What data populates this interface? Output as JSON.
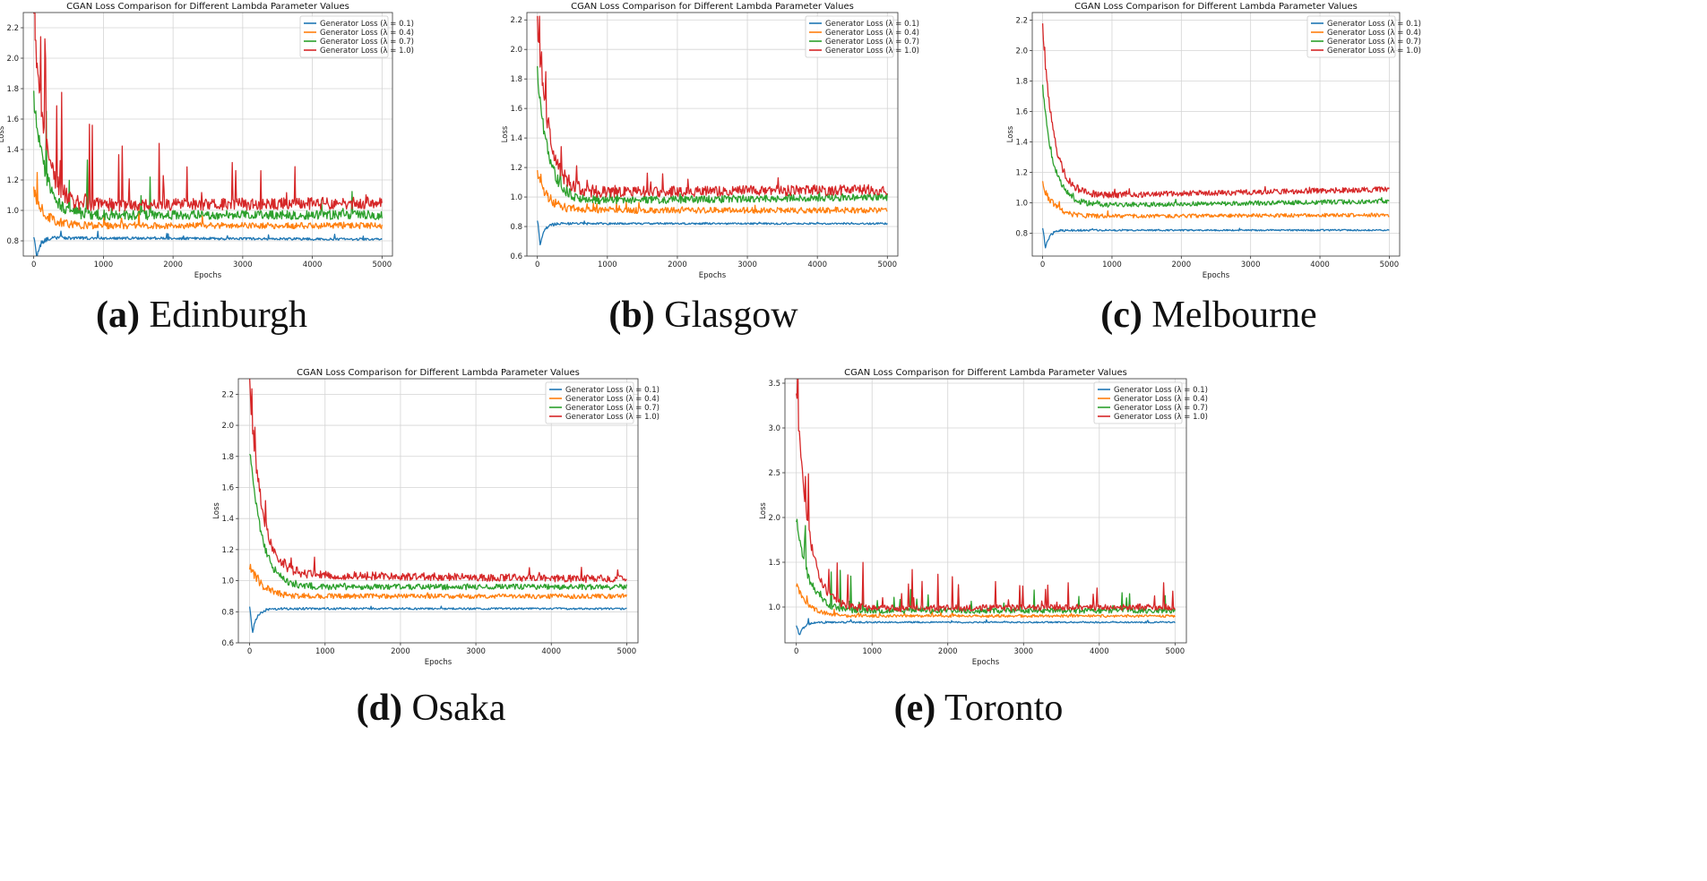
{
  "chart_data": [
    {
      "type": "line",
      "title": "CGAN Loss Comparison for Different Lambda Parameter Values",
      "caption_letter": "(a)",
      "caption_name": "Edinburgh",
      "xlabel": "Epochs",
      "ylabel": "Loss",
      "xlim": [
        -150,
        5150
      ],
      "ylim": [
        0.7,
        2.3
      ],
      "xticks": [
        0,
        1000,
        2000,
        3000,
        4000,
        5000
      ],
      "yticks": [
        0.8,
        1.0,
        1.2,
        1.4,
        1.6,
        1.8,
        2.0,
        2.2
      ],
      "ytick_decimals": 1,
      "grid": true,
      "legend_position": "top-right",
      "series": [
        {
          "name": "Generator Loss (λ = 0.1)",
          "color": "#1f77b4",
          "seed": 11,
          "start": 0.84,
          "dip": 0.69,
          "plateau": 0.82,
          "drift": -0.01,
          "noise": 0.008,
          "spike_prob": 0.02,
          "spike_size": 0.06
        },
        {
          "name": "Generator Loss (λ = 0.4)",
          "color": "#ff7f0e",
          "seed": 23,
          "start": 1.13,
          "dip": 0.0,
          "plateau": 0.9,
          "drift": 0.0,
          "noise": 0.02,
          "spike_prob": 0.015,
          "spike_size": 0.15
        },
        {
          "name": "Generator Loss (λ = 0.7)",
          "color": "#2ca02c",
          "seed": 37,
          "start": 1.75,
          "dip": 0.0,
          "plateau": 0.97,
          "drift": 0.0,
          "noise": 0.03,
          "spike_prob": 0.02,
          "spike_size": 0.35
        },
        {
          "name": "Generator Loss (λ = 1.0)",
          "color": "#d62728",
          "seed": 51,
          "start": 2.25,
          "dip": 0.0,
          "plateau": 1.03,
          "drift": 0.02,
          "noise": 0.04,
          "spike_prob": 0.03,
          "spike_size": 0.55
        }
      ]
    },
    {
      "type": "line",
      "title": "CGAN Loss Comparison for Different Lambda Parameter Values",
      "caption_letter": "(b)",
      "caption_name": "Glasgow",
      "xlabel": "Epochs",
      "ylabel": "Loss",
      "xlim": [
        -150,
        5150
      ],
      "ylim": [
        0.6,
        2.25
      ],
      "xticks": [
        0,
        1000,
        2000,
        3000,
        4000,
        5000
      ],
      "yticks": [
        0.6,
        0.8,
        1.0,
        1.2,
        1.4,
        1.6,
        1.8,
        2.0,
        2.2
      ],
      "ytick_decimals": 1,
      "grid": true,
      "legend_position": "top-right",
      "series": [
        {
          "name": "Generator Loss (λ = 0.1)",
          "color": "#1f77b4",
          "seed": 12,
          "start": 0.85,
          "dip": 0.68,
          "plateau": 0.82,
          "drift": 0.0,
          "noise": 0.006,
          "spike_prob": 0.015,
          "spike_size": 0.02
        },
        {
          "name": "Generator Loss (λ = 0.4)",
          "color": "#ff7f0e",
          "seed": 24,
          "start": 1.15,
          "dip": 0.0,
          "plateau": 0.91,
          "drift": 0.0,
          "noise": 0.02,
          "spike_prob": 0.02,
          "spike_size": 0.06
        },
        {
          "name": "Generator Loss (λ = 0.7)",
          "color": "#2ca02c",
          "seed": 38,
          "start": 1.85,
          "dip": 0.0,
          "plateau": 0.97,
          "drift": 0.03,
          "noise": 0.025,
          "spike_prob": 0.02,
          "spike_size": 0.1
        },
        {
          "name": "Generator Loss (λ = 1.0)",
          "color": "#d62728",
          "seed": 52,
          "start": 2.18,
          "dip": 0.0,
          "plateau": 1.03,
          "drift": 0.02,
          "noise": 0.035,
          "spike_prob": 0.03,
          "spike_size": 0.18
        }
      ]
    },
    {
      "type": "line",
      "title": "CGAN Loss Comparison for Different Lambda Parameter Values",
      "caption_letter": "(c)",
      "caption_name": "Melbourne",
      "xlabel": "Epochs",
      "ylabel": "Loss",
      "xlim": [
        -150,
        5150
      ],
      "ylim": [
        0.65,
        2.25
      ],
      "xticks": [
        0,
        1000,
        2000,
        3000,
        4000,
        5000
      ],
      "yticks": [
        0.8,
        1.0,
        1.2,
        1.4,
        1.6,
        1.8,
        2.0,
        2.2
      ],
      "ytick_decimals": 1,
      "grid": true,
      "legend_position": "top-right",
      "series": [
        {
          "name": "Generator Loss (λ = 0.1)",
          "color": "#1f77b4",
          "seed": 13,
          "start": 0.84,
          "dip": 0.7,
          "plateau": 0.82,
          "drift": 0.0,
          "noise": 0.005,
          "spike_prob": 0.01,
          "spike_size": 0.02
        },
        {
          "name": "Generator Loss (λ = 0.4)",
          "color": "#ff7f0e",
          "seed": 25,
          "start": 1.12,
          "dip": 0.0,
          "plateau": 0.91,
          "drift": 0.01,
          "noise": 0.012,
          "spike_prob": 0.01,
          "spike_size": 0.03
        },
        {
          "name": "Generator Loss (λ = 0.7)",
          "color": "#2ca02c",
          "seed": 39,
          "start": 1.75,
          "dip": 0.0,
          "plateau": 0.98,
          "drift": 0.03,
          "noise": 0.015,
          "spike_prob": 0.01,
          "spike_size": 0.04
        },
        {
          "name": "Generator Loss (λ = 1.0)",
          "color": "#d62728",
          "seed": 53,
          "start": 2.15,
          "dip": 0.0,
          "plateau": 1.04,
          "drift": 0.05,
          "noise": 0.018,
          "spike_prob": 0.01,
          "spike_size": 0.05
        }
      ]
    },
    {
      "type": "line",
      "title": "CGAN Loss Comparison for Different Lambda Parameter Values",
      "caption_letter": "(d)",
      "caption_name": "Osaka",
      "xlabel": "Epochs",
      "ylabel": "Loss",
      "xlim": [
        -150,
        5150
      ],
      "ylim": [
        0.6,
        2.3
      ],
      "xticks": [
        0,
        1000,
        2000,
        3000,
        4000,
        5000
      ],
      "yticks": [
        0.6,
        0.8,
        1.0,
        1.2,
        1.4,
        1.6,
        1.8,
        2.0,
        2.2
      ],
      "ytick_decimals": 1,
      "grid": true,
      "legend_position": "top-right",
      "series": [
        {
          "name": "Generator Loss (λ = 0.1)",
          "color": "#1f77b4",
          "seed": 14,
          "start": 0.84,
          "dip": 0.67,
          "plateau": 0.82,
          "drift": 0.0,
          "noise": 0.006,
          "spike_prob": 0.01,
          "spike_size": 0.02
        },
        {
          "name": "Generator Loss (λ = 0.4)",
          "color": "#ff7f0e",
          "seed": 26,
          "start": 1.1,
          "dip": 0.0,
          "plateau": 0.9,
          "drift": 0.0,
          "noise": 0.015,
          "spike_prob": 0.01,
          "spike_size": 0.04
        },
        {
          "name": "Generator Loss (λ = 0.7)",
          "color": "#2ca02c",
          "seed": 40,
          "start": 1.85,
          "dip": 0.0,
          "plateau": 0.96,
          "drift": 0.0,
          "noise": 0.018,
          "spike_prob": 0.01,
          "spike_size": 0.05
        },
        {
          "name": "Generator Loss (λ = 1.0)",
          "color": "#d62728",
          "seed": 54,
          "start": 2.26,
          "dip": 0.0,
          "plateau": 1.04,
          "drift": -0.03,
          "noise": 0.025,
          "spike_prob": 0.03,
          "spike_size": 0.15
        }
      ]
    },
    {
      "type": "line",
      "title": "CGAN Loss Comparison for Different Lambda Parameter Values",
      "caption_letter": "(e)",
      "caption_name": "Toronto",
      "xlabel": "Epochs",
      "ylabel": "Loss",
      "xlim": [
        -150,
        5150
      ],
      "ylim": [
        0.6,
        3.55
      ],
      "xticks": [
        0,
        1000,
        2000,
        3000,
        4000,
        5000
      ],
      "yticks": [
        1.0,
        1.5,
        2.0,
        2.5,
        3.0,
        3.5
      ],
      "ytick_decimals": 1,
      "grid": true,
      "legend_position": "top-right",
      "series": [
        {
          "name": "Generator Loss (λ = 0.1)",
          "color": "#1f77b4",
          "seed": 15,
          "start": 0.8,
          "dip": 0.68,
          "plateau": 0.83,
          "drift": 0.0,
          "noise": 0.008,
          "spike_prob": 0.02,
          "spike_size": 0.05
        },
        {
          "name": "Generator Loss (λ = 0.4)",
          "color": "#ff7f0e",
          "seed": 27,
          "start": 1.25,
          "dip": 0.0,
          "plateau": 0.9,
          "drift": 0.0,
          "noise": 0.015,
          "spike_prob": 0.015,
          "spike_size": 0.1
        },
        {
          "name": "Generator Loss (λ = 0.7)",
          "color": "#2ca02c",
          "seed": 41,
          "start": 2.0,
          "dip": 0.0,
          "plateau": 0.96,
          "drift": 0.0,
          "noise": 0.03,
          "spike_prob": 0.04,
          "spike_size": 0.4
        },
        {
          "name": "Generator Loss (λ = 1.0)",
          "color": "#d62728",
          "seed": 55,
          "start": 3.45,
          "dip": 0.0,
          "plateau": 0.98,
          "drift": 0.02,
          "noise": 0.035,
          "spike_prob": 0.05,
          "spike_size": 0.6
        }
      ]
    }
  ]
}
